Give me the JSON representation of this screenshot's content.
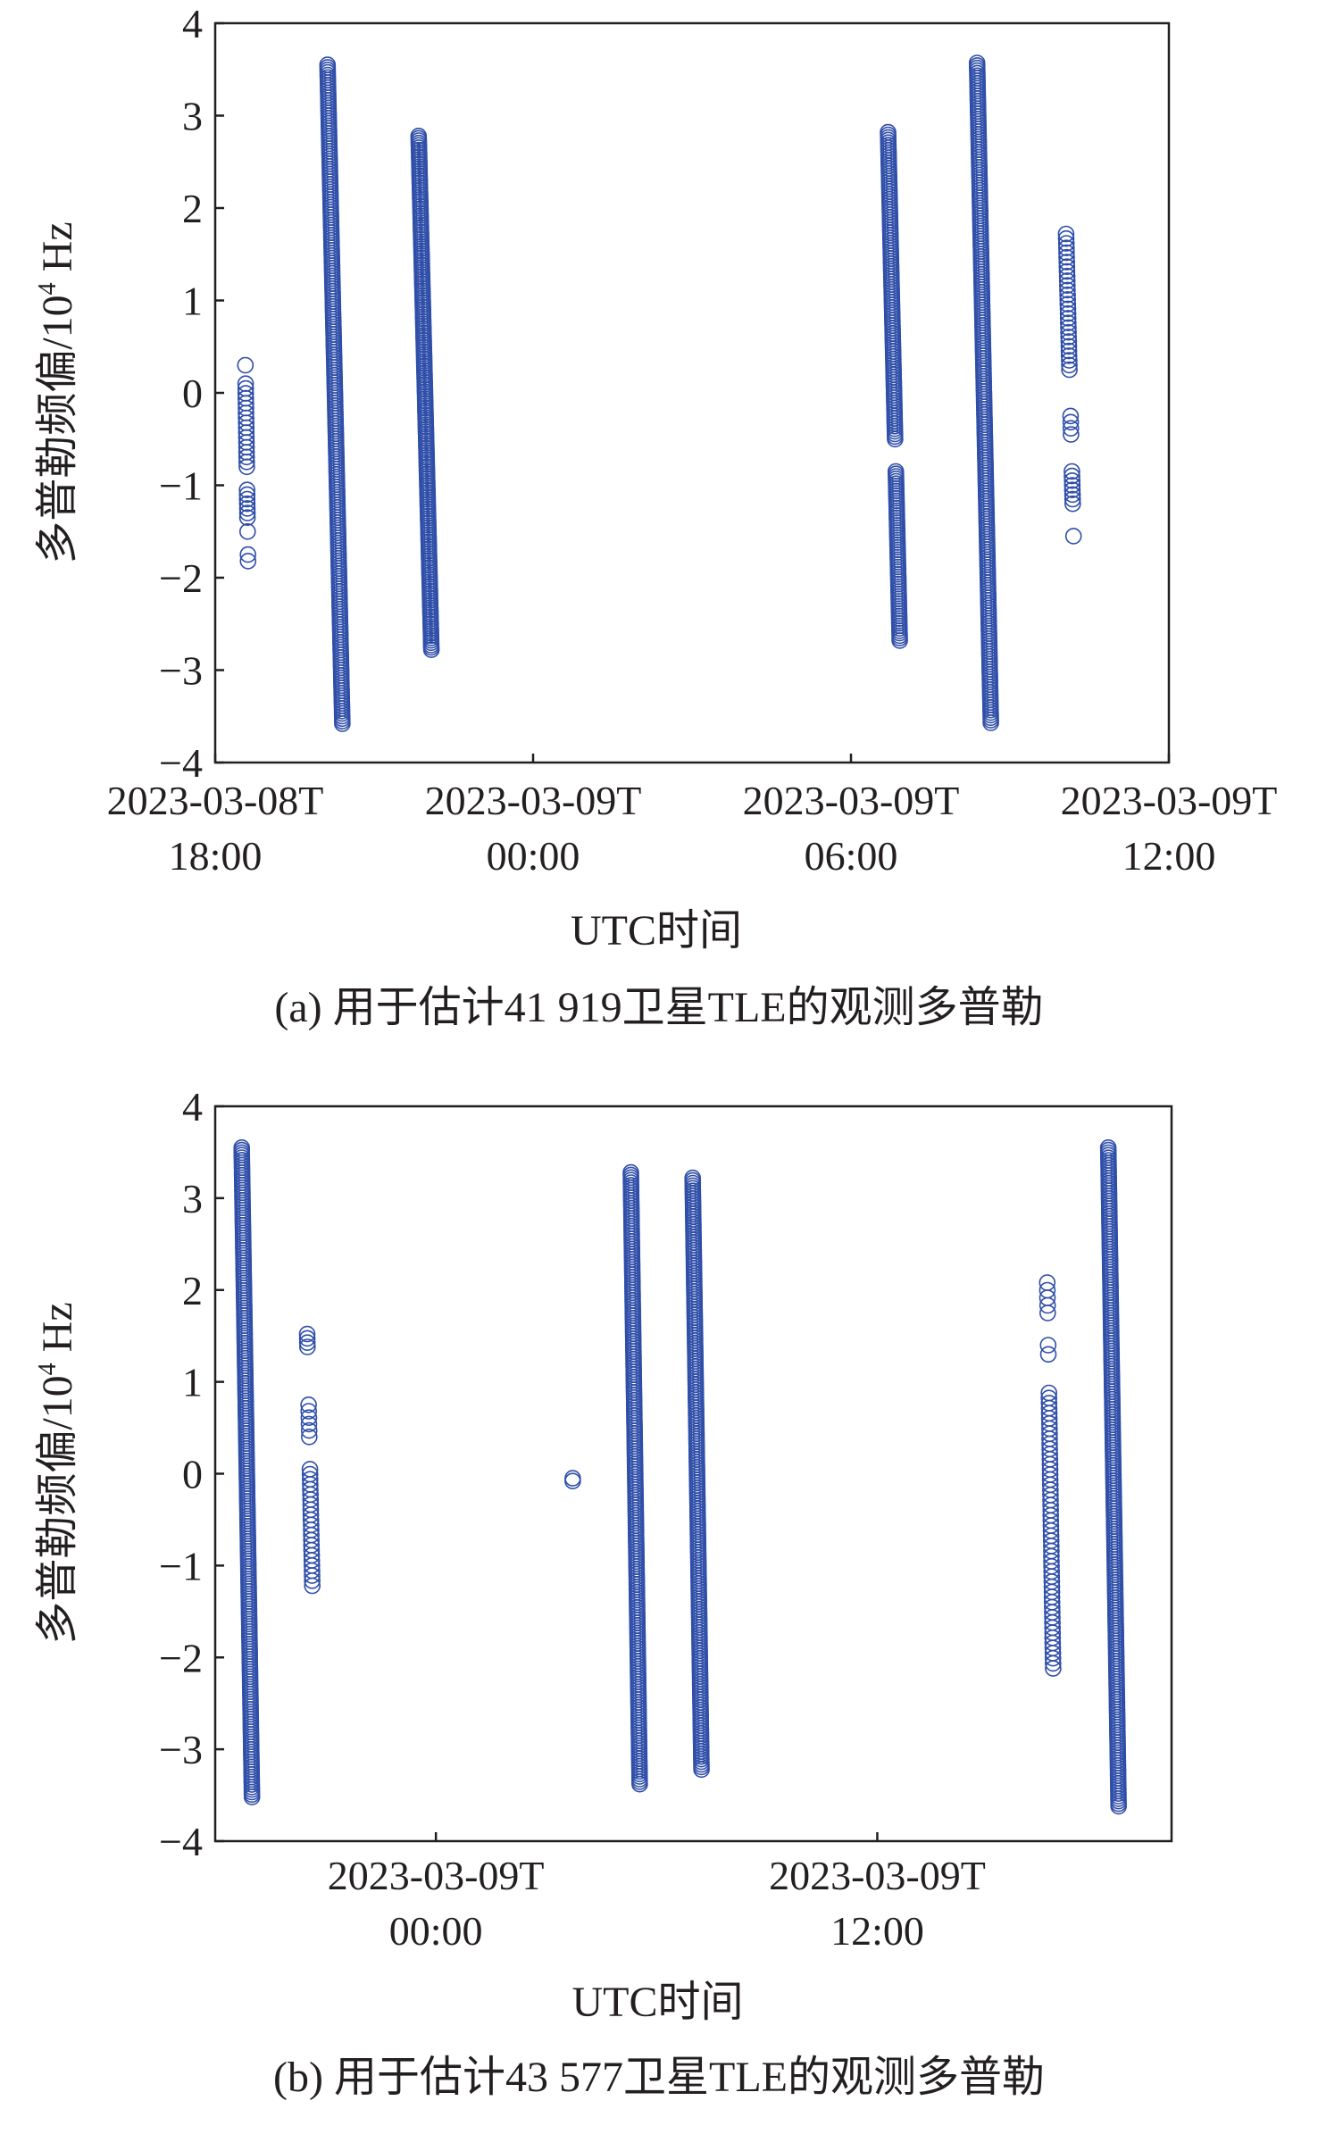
{
  "color": "#2f4ea8",
  "chart_data": [
    {
      "type": "scatter",
      "caption": "(a) 用于估计41 919卫星TLE的观测多普勒",
      "xlabel": "UTC时间",
      "ylabel_main": "多普勒频偏/10",
      "ylabel_sup": "4",
      "ylabel_unit": " Hz",
      "ylim": [
        -4,
        4
      ],
      "yticks": [
        "4",
        "3",
        "2",
        "1",
        "0",
        "−1",
        "−2",
        "−3",
        "−4"
      ],
      "ytick_values": [
        4,
        3,
        2,
        1,
        0,
        -1,
        -2,
        -3,
        -4
      ],
      "xlim_hours": [
        0,
        18
      ],
      "x_origin": "2023-03-08T18:00",
      "xticks": [
        {
          "hours": 0,
          "line1": "2023-03-08T",
          "line2": "18:00"
        },
        {
          "hours": 6,
          "line1": "2023-03-09T",
          "line2": "00:00"
        },
        {
          "hours": 12,
          "line1": "2023-03-09T",
          "line2": "06:00"
        },
        {
          "hours": 18,
          "line1": "2023-03-09T",
          "line2": "12:00"
        }
      ],
      "passes": [
        {
          "t": [
            0.57,
            0.62
          ],
          "segments": [
            [
              0.3,
              0.3,
              1
            ],
            [
              0.1,
              -0.8,
              18
            ],
            [
              -1.05,
              -1.35,
              7
            ],
            [
              -1.5,
              -1.5,
              1
            ],
            [
              -1.75,
              -1.82,
              2
            ]
          ]
        },
        {
          "t": [
            2.12,
            2.4
          ],
          "segments": [
            [
              3.55,
              -3.58,
              260
            ]
          ]
        },
        {
          "t": [
            3.84,
            4.08
          ],
          "segments": [
            [
              2.78,
              -2.78,
              220
            ]
          ]
        },
        {
          "t": [
            12.7,
            12.92
          ],
          "segments": [
            [
              2.82,
              -0.5,
              120
            ],
            [
              -0.85,
              -2.68,
              70
            ]
          ]
        },
        {
          "t": [
            14.38,
            14.64
          ],
          "segments": [
            [
              3.57,
              -3.57,
              260
            ]
          ]
        },
        {
          "t": [
            16.06,
            16.2
          ],
          "segments": [
            [
              1.72,
              0.25,
              30
            ],
            [
              -0.25,
              -0.45,
              4
            ],
            [
              -0.85,
              -1.2,
              8
            ],
            [
              -1.55,
              -1.55,
              1
            ]
          ]
        }
      ]
    },
    {
      "type": "scatter",
      "caption": "(b) 用于估计43 577卫星TLE的观测多普勒",
      "xlabel": "UTC时间",
      "ylabel_main": "多普勒频偏/10",
      "ylabel_sup": "4",
      "ylabel_unit": " Hz",
      "ylim": [
        -4,
        4
      ],
      "yticks": [
        "4",
        "3",
        "2",
        "1",
        "0",
        "−1",
        "−2",
        "−3",
        "−4"
      ],
      "ytick_values": [
        4,
        3,
        2,
        1,
        0,
        -1,
        -2,
        -3,
        -4
      ],
      "xlim_hours": [
        0,
        26
      ],
      "x_origin": "2023-03-08T18:00",
      "xticks": [
        {
          "hours": 6,
          "line1": "2023-03-09T",
          "line2": "00:00"
        },
        {
          "hours": 18,
          "line1": "2023-03-09T",
          "line2": "12:00"
        }
      ],
      "passes": [
        {
          "t": [
            0.72,
            1.0
          ],
          "segments": [
            [
              3.55,
              -3.52,
              260
            ]
          ]
        },
        {
          "t": [
            2.5,
            2.64
          ],
          "segments": [
            [
              1.52,
              1.38,
              4
            ],
            [
              0.75,
              0.4,
              6
            ],
            [
              0.05,
              -1.22,
              24
            ]
          ]
        },
        {
          "t": [
            9.72,
            9.72
          ],
          "segments": [
            [
              -0.05,
              -0.08,
              2
            ]
          ]
        },
        {
          "t": [
            11.3,
            11.54
          ],
          "segments": [
            [
              3.28,
              -3.38,
              240
            ]
          ]
        },
        {
          "t": [
            12.98,
            13.22
          ],
          "segments": [
            [
              3.22,
              -3.22,
              230
            ]
          ]
        },
        {
          "t": [
            22.62,
            22.78
          ],
          "segments": [
            [
              2.08,
              1.75,
              5
            ],
            [
              1.4,
              1.3,
              2
            ],
            [
              0.88,
              -2.12,
              55
            ]
          ]
        },
        {
          "t": [
            24.28,
            24.56
          ],
          "segments": [
            [
              3.55,
              -3.62,
              260
            ]
          ]
        }
      ]
    }
  ]
}
